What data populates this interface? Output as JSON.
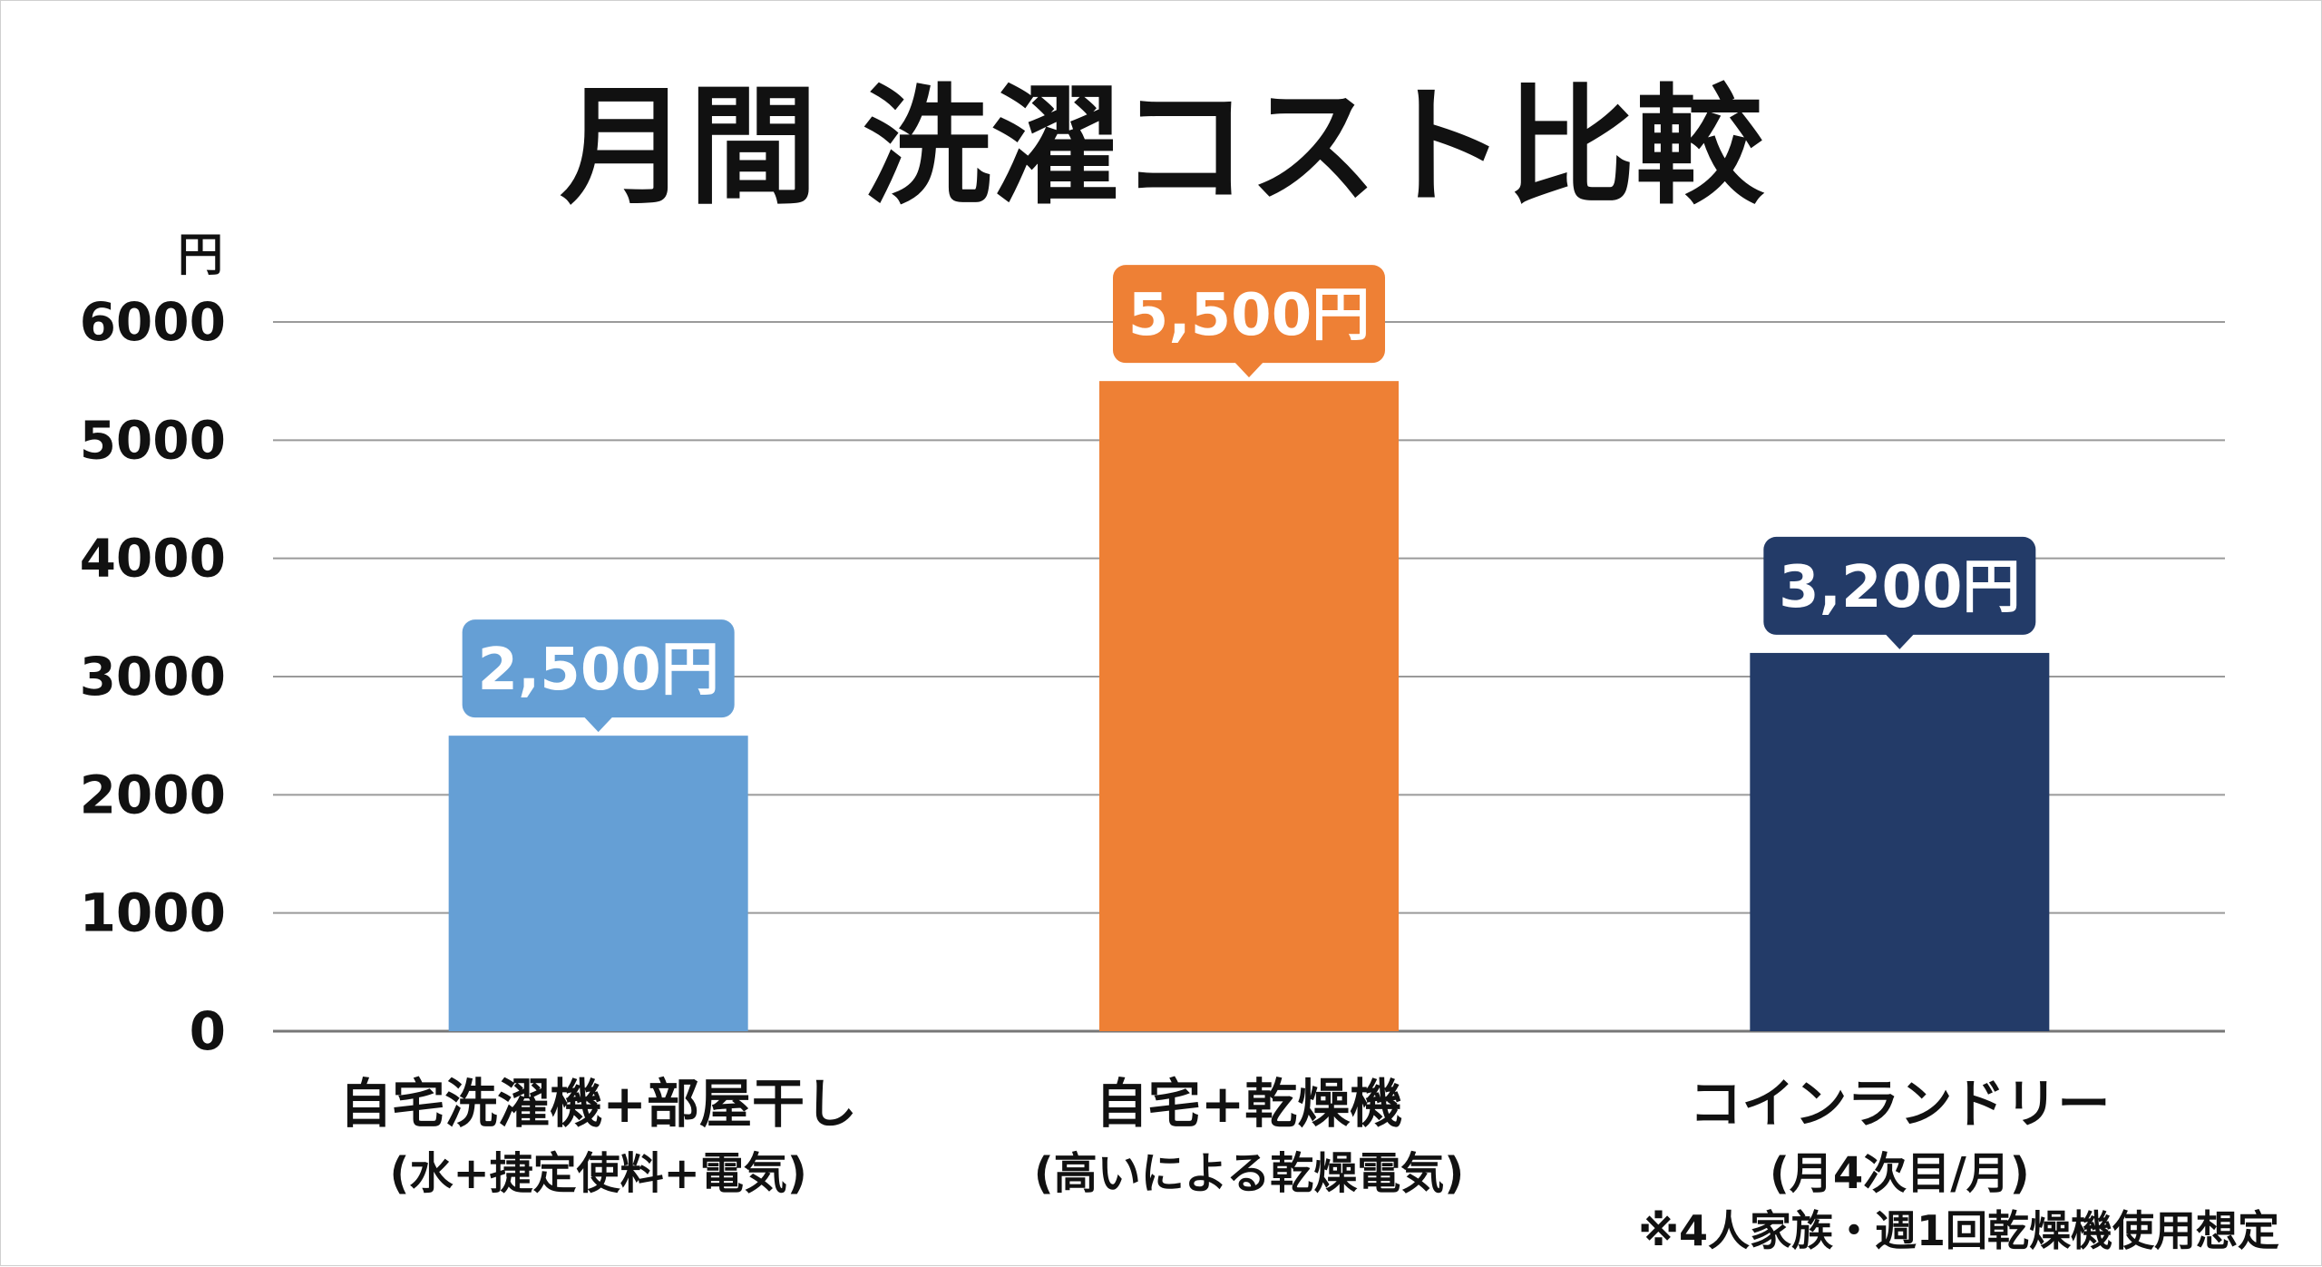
{
  "chart_data": {
    "type": "bar",
    "title": "月間 洗濯コスト比較",
    "ylabel": "円",
    "ylim": [
      0,
      6000
    ],
    "yticks": [
      0,
      1000,
      2000,
      3000,
      4000,
      5000,
      6000
    ],
    "grid": true,
    "categories": [
      "自宅洗濯機+部屋干し",
      "自宅+乾燥機",
      "コインランドリー"
    ],
    "category_notes": [
      "(水+捷定使料+電気)",
      "(高いによる乾燥電気)",
      "(月4次目/月)"
    ],
    "values": [
      2500,
      5500,
      3200
    ],
    "value_labels": [
      "2,500円",
      "5,500円",
      "3,200円"
    ],
    "colors": [
      "#659fd5",
      "#ee8035",
      "#233b68"
    ],
    "footnote": "※4人家族・週1回乾燥機使用想定"
  }
}
